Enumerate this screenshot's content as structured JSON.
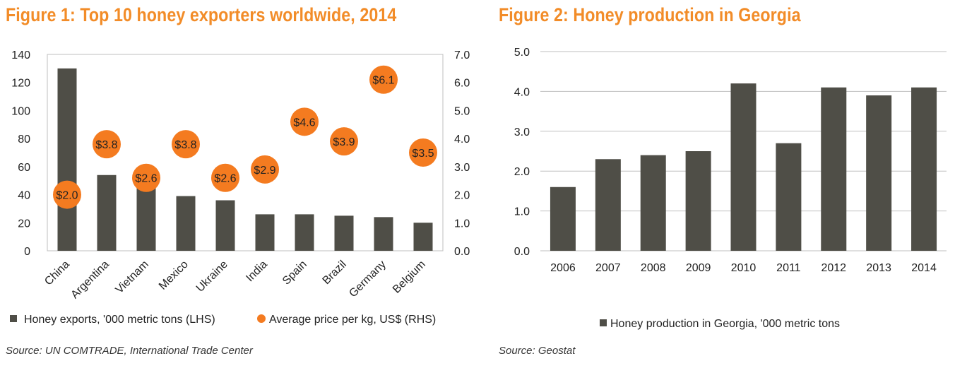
{
  "figure1": {
    "title": "Figure 1:  Top 10 honey exporters worldwide, 2014",
    "source": "Source: UN COMTRADE, International Trade Center",
    "legend": {
      "bars": "Honey exports, '000 metric tons (LHS)",
      "dots": "Average price per kg, US$ (RHS)"
    }
  },
  "figure2": {
    "title": "Figure 2: Honey production in Georgia",
    "source": "Source: Geostat",
    "legend": {
      "bars": "Honey production in Georgia, '000 metric tons"
    }
  },
  "colors": {
    "bar": "#4f4e47",
    "dot": "#f47b20",
    "title": "#f28c28"
  },
  "chart_data": [
    {
      "type": "bar",
      "title": "Figure 1:  Top 10 honey exporters worldwide, 2014",
      "categories": [
        "China",
        "Argentina",
        "Vietnam",
        "Mexico",
        "Ukraine",
        "India",
        "Spain",
        "Brazil",
        "Germany",
        "Belgium"
      ],
      "series": [
        {
          "name": "Honey exports, '000 metric tons (LHS)",
          "axis": "left",
          "kind": "bar",
          "values": [
            130,
            54,
            48,
            39,
            36,
            26,
            26,
            25,
            24,
            20
          ]
        },
        {
          "name": "Average price per kg, US$ (RHS)",
          "axis": "right",
          "kind": "dot",
          "values": [
            2.0,
            3.8,
            2.6,
            3.8,
            2.6,
            2.9,
            4.6,
            3.9,
            6.1,
            3.5
          ],
          "labels": [
            "$2.0",
            "$3.8",
            "$2.6",
            "$3.8",
            "$2.6",
            "$2.9",
            "$4.6",
            "$3.9",
            "$6.1",
            "$3.5"
          ]
        }
      ],
      "ylim_left": [
        0,
        140
      ],
      "yticks_left": [
        "0",
        "20",
        "40",
        "60",
        "80",
        "100",
        "120",
        "140"
      ],
      "ylim_right": [
        0,
        7
      ],
      "yticks_right": [
        "0.0",
        "1.0",
        "2.0",
        "3.0",
        "4.0",
        "5.0",
        "6.0",
        "7.0"
      ],
      "grid": false,
      "legend_position": "bottom"
    },
    {
      "type": "bar",
      "title": "Figure 2: Honey production in Georgia",
      "categories": [
        "2006",
        "2007",
        "2008",
        "2009",
        "2010",
        "2011",
        "2012",
        "2013",
        "2014"
      ],
      "series": [
        {
          "name": "Honey production in Georgia, '000 metric tons",
          "values": [
            1.6,
            2.3,
            2.4,
            2.5,
            4.2,
            2.7,
            4.1,
            3.9,
            4.1
          ]
        }
      ],
      "ylim": [
        0,
        5
      ],
      "yticks": [
        "0.0",
        "1.0",
        "2.0",
        "3.0",
        "4.0",
        "5.0"
      ],
      "grid": true,
      "legend_position": "bottom"
    }
  ]
}
